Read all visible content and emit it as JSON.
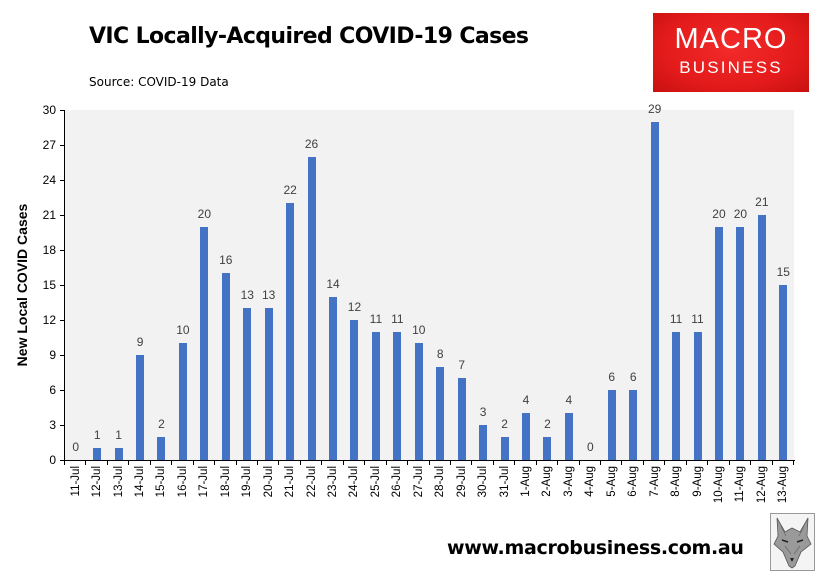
{
  "header": {
    "title": "VIC Locally-Acquired COVID-19 Cases",
    "subtitle": "Source: COVID-19 Data"
  },
  "logo": {
    "line1": "MACRO",
    "line2": "BUSINESS",
    "bg_color": "#e41b1b"
  },
  "footer": {
    "url": "www.macrobusiness.com.au",
    "mascot_icon": "wolf-icon"
  },
  "colors": {
    "bar": "#4472C4",
    "plot_background": "#F2F2F2",
    "data_label": "#404040"
  },
  "chart_data": {
    "type": "bar",
    "title": "VIC Locally-Acquired COVID-19 Cases",
    "subtitle": "Source: COVID-19 Data",
    "xlabel": "",
    "ylabel": "New Local COVID Cases",
    "ylim": [
      0,
      30
    ],
    "yticks": [
      0,
      3,
      6,
      9,
      12,
      15,
      18,
      21,
      24,
      27,
      30
    ],
    "grid": false,
    "legend": null,
    "data_labels": true,
    "categories": [
      "11-Jul",
      "12-Jul",
      "13-Jul",
      "14-Jul",
      "15-Jul",
      "16-Jul",
      "17-Jul",
      "18-Jul",
      "19-Jul",
      "20-Jul",
      "21-Jul",
      "22-Jul",
      "23-Jul",
      "24-Jul",
      "25-Jul",
      "26-Jul",
      "27-Jul",
      "28-Jul",
      "29-Jul",
      "30-Jul",
      "31-Jul",
      "1-Aug",
      "2-Aug",
      "3-Aug",
      "4-Aug",
      "5-Aug",
      "6-Aug",
      "7-Aug",
      "8-Aug",
      "9-Aug",
      "10-Aug",
      "11-Aug",
      "12-Aug",
      "13-Aug"
    ],
    "values": [
      0,
      1,
      1,
      9,
      2,
      10,
      20,
      16,
      13,
      13,
      22,
      26,
      14,
      12,
      11,
      11,
      10,
      8,
      7,
      3,
      2,
      4,
      2,
      4,
      0,
      6,
      6,
      29,
      11,
      11,
      20,
      20,
      21,
      15
    ]
  }
}
